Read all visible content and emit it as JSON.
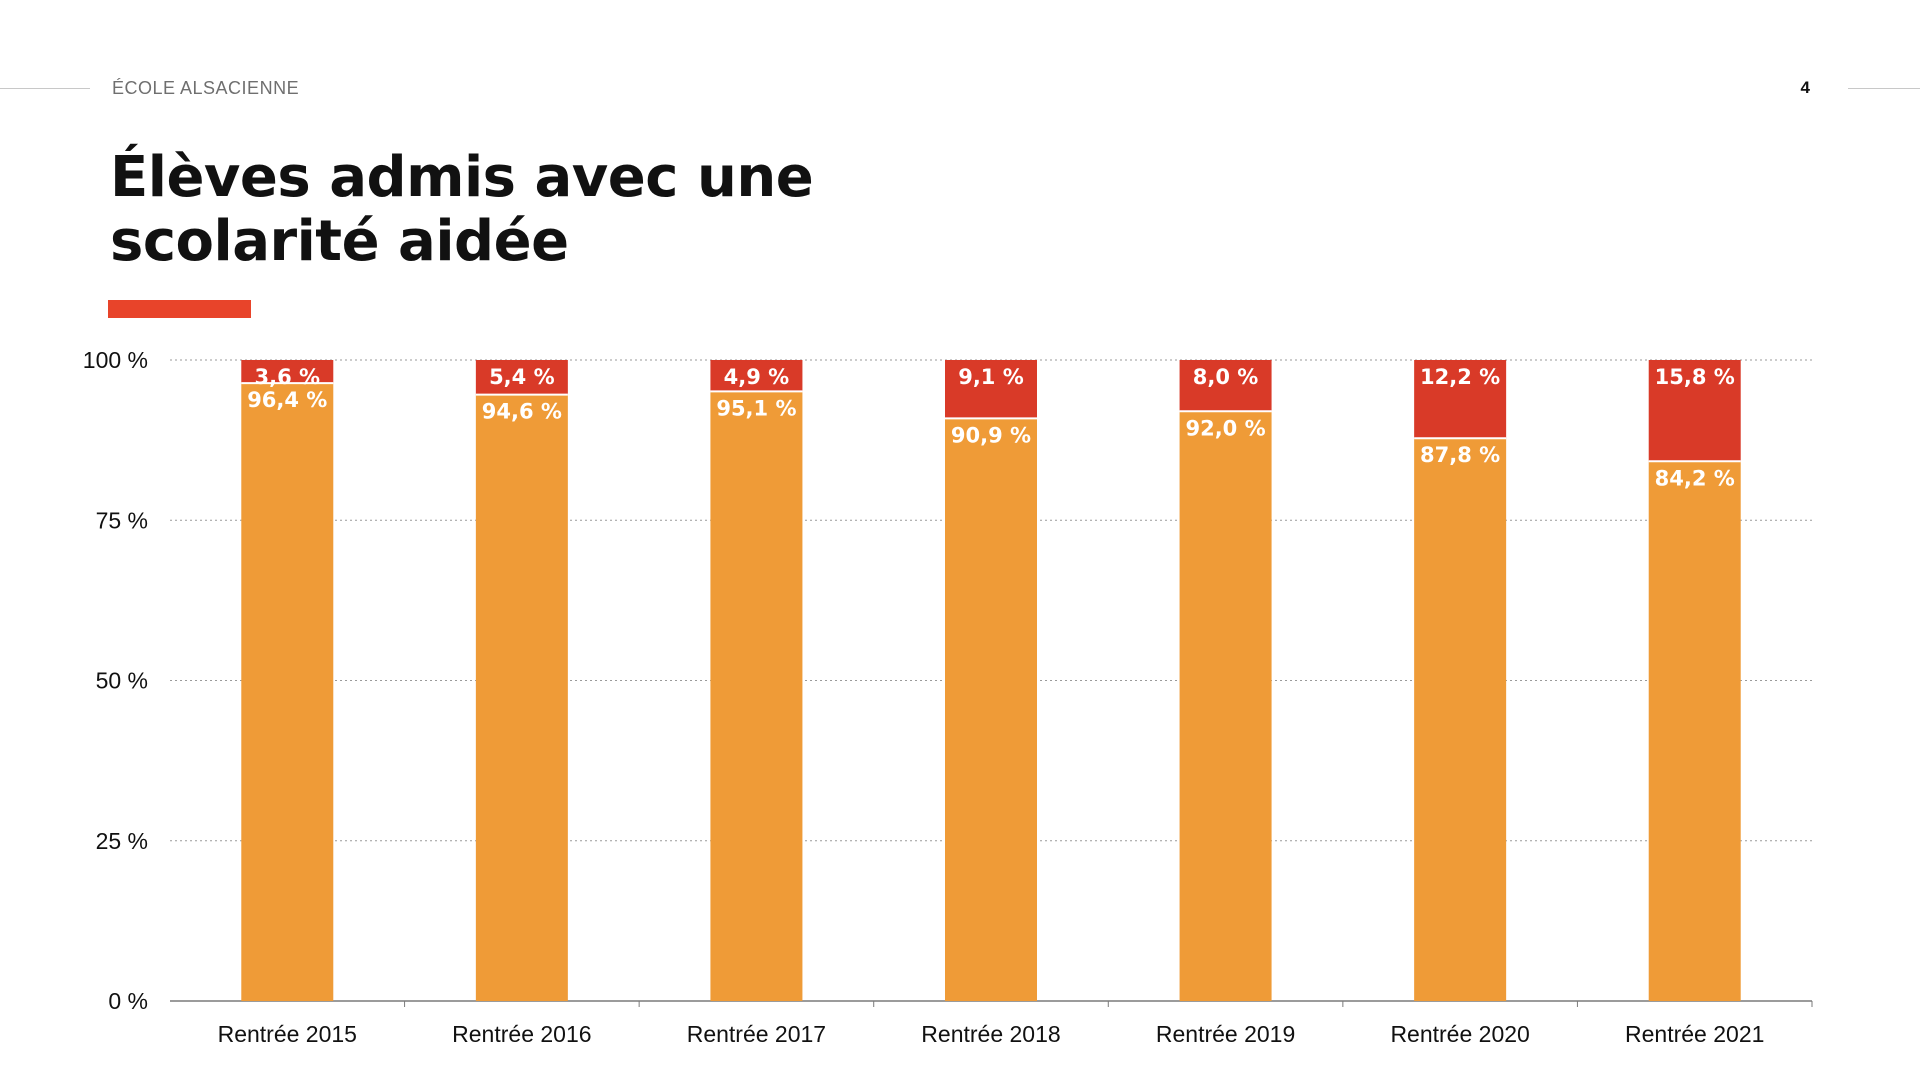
{
  "header": {
    "brand": "ÉCOLE ALSACIENNE",
    "page_number": "4"
  },
  "slide": {
    "title": "Élèves admis avec une scolarité aidée"
  },
  "colors": {
    "accent": "#e8442a",
    "series_orange": "#ef9b37",
    "series_red": "#d93a28",
    "grid": "#9a9a9a"
  },
  "chart_data": {
    "type": "bar",
    "stacked": true,
    "categories": [
      "Rentrée 2015",
      "Rentrée 2016",
      "Rentrée 2017",
      "Rentrée 2018",
      "Rentrée 2019",
      "Rentrée 2020",
      "Rentrée 2021"
    ],
    "series": [
      {
        "color": "#ef9b37",
        "values": [
          96.4,
          94.6,
          95.1,
          90.9,
          92.0,
          87.8,
          84.2
        ],
        "labels": [
          "96,4 %",
          "94,6 %",
          "95,1 %",
          "90,9 %",
          "92,0 %",
          "87,8 %",
          "84,2 %"
        ]
      },
      {
        "color": "#d93a28",
        "values": [
          3.6,
          5.4,
          4.9,
          9.1,
          8.0,
          12.2,
          15.8
        ],
        "labels": [
          "3,6 %",
          "5,4 %",
          "4,9 %",
          "9,1 %",
          "8,0 %",
          "12,2 %",
          "15,8 %"
        ]
      }
    ],
    "ylim": [
      0,
      100
    ],
    "yticks": [
      0,
      25,
      50,
      75,
      100
    ],
    "ytick_labels": [
      "0 %",
      "25 %",
      "50 %",
      "75 %",
      "100 %"
    ],
    "grid": true,
    "legend": "none"
  }
}
